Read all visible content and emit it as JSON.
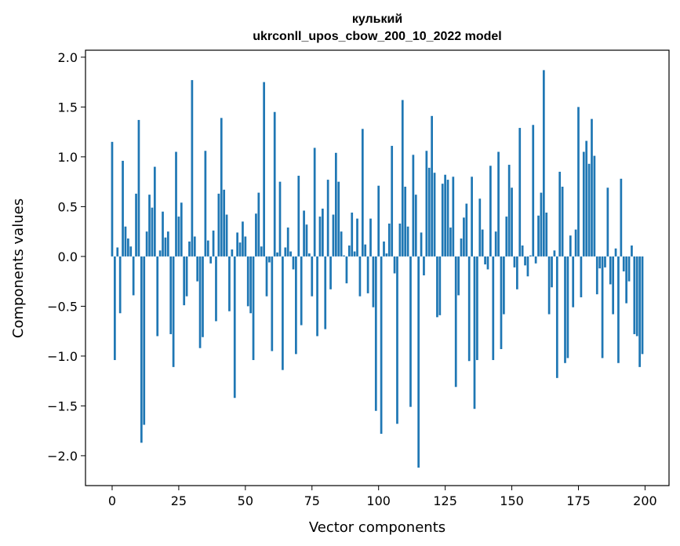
{
  "chart_data": {
    "type": "bar",
    "title": "кулький",
    "subtitle": "ukrconll_upos_cbow_200_10_2022 model",
    "xlabel": "Vector components",
    "ylabel": "Components values",
    "xlim": [
      -10,
      209
    ],
    "ylim": [
      -2.3,
      2.07
    ],
    "xticks": [
      0,
      25,
      50,
      75,
      100,
      125,
      150,
      175,
      200
    ],
    "yticks": [
      2.0,
      1.5,
      1.0,
      0.5,
      0.0,
      -0.5,
      -1.0,
      -1.5,
      -2.0
    ],
    "xtick_labels": [
      "0",
      "25",
      "50",
      "75",
      "100",
      "125",
      "150",
      "175",
      "200"
    ],
    "ytick_labels": [
      "2.0",
      "1.5",
      "1.0",
      "0.5",
      "0.0",
      "−0.5",
      "−1.0",
      "−1.5",
      "−2.0"
    ],
    "grid": false,
    "bar_color": "#1f77b4",
    "values": [
      1.15,
      -1.04,
      0.09,
      -0.57,
      0.96,
      0.3,
      0.18,
      0.1,
      -0.39,
      0.63,
      1.37,
      -1.87,
      -1.69,
      0.25,
      0.62,
      0.49,
      0.9,
      -0.8,
      0.06,
      0.45,
      0.19,
      0.25,
      -0.78,
      -1.11,
      1.05,
      0.4,
      0.54,
      -0.49,
      -0.4,
      0.15,
      1.77,
      0.2,
      -0.25,
      -0.92,
      -0.81,
      1.06,
      0.16,
      -0.07,
      0.26,
      -0.65,
      0.63,
      1.39,
      0.67,
      0.42,
      -0.55,
      0.07,
      -1.42,
      0.24,
      0.14,
      0.35,
      0.2,
      -0.5,
      -0.57,
      -1.04,
      0.43,
      0.64,
      0.1,
      1.75,
      -0.4,
      -0.06,
      -0.95,
      1.45,
      0.04,
      0.75,
      -1.14,
      0.09,
      0.29,
      0.05,
      -0.13,
      -0.98,
      0.81,
      -0.69,
      0.46,
      0.32,
      0.03,
      -0.4,
      1.09,
      -0.8,
      0.4,
      0.48,
      -0.73,
      0.77,
      -0.33,
      0.42,
      1.04,
      0.75,
      0.25,
      0.01,
      -0.27,
      0.11,
      0.44,
      0.05,
      0.38,
      -0.4,
      1.28,
      0.12,
      -0.37,
      0.38,
      -0.51,
      -1.55,
      0.71,
      -1.78,
      0.15,
      0.03,
      0.33,
      1.11,
      -0.17,
      -1.68,
      0.33,
      1.57,
      0.7,
      0.3,
      -1.51,
      1.02,
      0.62,
      -2.12,
      0.24,
      -0.19,
      1.06,
      0.89,
      1.41,
      0.84,
      -0.61,
      -0.59,
      0.73,
      0.82,
      0.77,
      0.29,
      0.8,
      -1.31,
      -0.39,
      0.18,
      0.39,
      0.53,
      -1.05,
      0.8,
      -1.53,
      -1.04,
      0.58,
      0.27,
      -0.08,
      -0.13,
      0.91,
      -1.04,
      0.25,
      1.05,
      -0.93,
      -0.58,
      0.4,
      0.92,
      0.69,
      -0.11,
      -0.33,
      1.29,
      0.11,
      -0.09,
      -0.2,
      0.01,
      1.32,
      -0.07,
      0.41,
      0.64,
      1.87,
      0.44,
      -0.58,
      -0.31,
      0.06,
      -1.22,
      0.85,
      0.7,
      -1.07,
      -1.02,
      0.21,
      -0.51,
      0.27,
      1.5,
      -0.41,
      1.05,
      1.16,
      0.93,
      1.38,
      1.01,
      -0.38,
      -0.12,
      -1.02,
      -0.11,
      0.69,
      -0.28,
      -0.58,
      0.08,
      -1.07,
      0.78,
      -0.15,
      -0.47,
      -0.25,
      0.11,
      -0.78,
      -0.8,
      -1.11,
      -0.98
    ]
  }
}
